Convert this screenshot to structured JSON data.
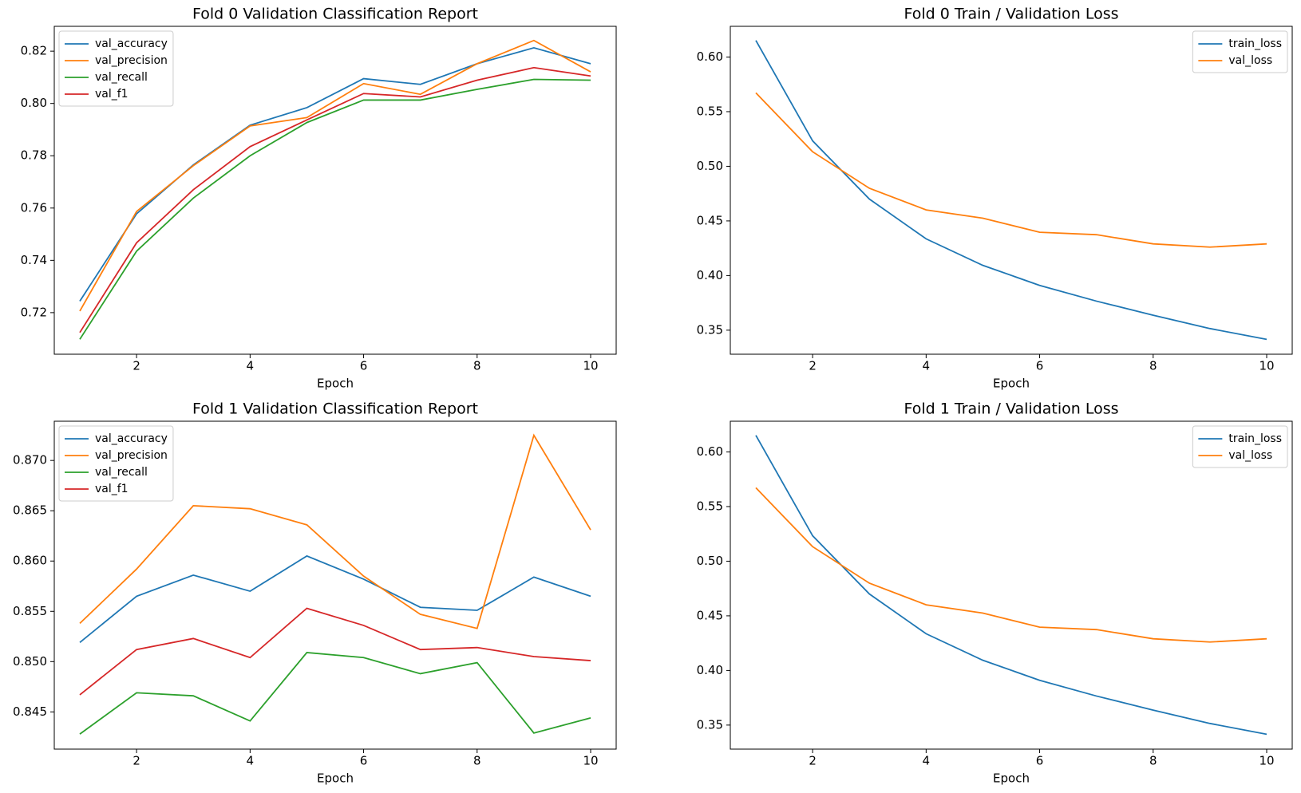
{
  "chart_data": [
    {
      "type": "line",
      "title": "Fold 0 Validation Classification Report",
      "xlabel": "Epoch",
      "x": [
        1,
        2,
        3,
        4,
        5,
        6,
        7,
        8,
        9,
        10
      ],
      "xlim": [
        0.55,
        10.45
      ],
      "xticks": [
        2,
        4,
        6,
        8,
        10
      ],
      "ylim": [
        0.7041,
        0.8295
      ],
      "yticks": [
        0.72,
        0.74,
        0.76,
        0.78,
        {
          "value": 0.8,
          "label": "0.80"
        },
        0.82
      ],
      "legend": "upper left",
      "series": [
        {
          "name": "val_accuracy",
          "color": "#1f77b4",
          "values": [
            0.7244,
            0.7578,
            0.7765,
            0.7917,
            0.7984,
            0.8095,
            0.8073,
            0.8152,
            0.8213,
            0.8152
          ]
        },
        {
          "name": "val_precision",
          "color": "#ff7f0e",
          "values": [
            0.7206,
            0.7587,
            0.7762,
            0.7914,
            0.7946,
            0.8076,
            0.8035,
            0.8152,
            0.8241,
            0.8121
          ]
        },
        {
          "name": "val_recall",
          "color": "#2ca02c",
          "values": [
            0.7098,
            0.7435,
            0.7638,
            0.78,
            0.7927,
            0.8013,
            0.8013,
            0.8054,
            0.8092,
            0.8089
          ]
        },
        {
          "name": "val_f1",
          "color": "#d62728",
          "values": [
            0.7124,
            0.7467,
            0.767,
            0.7835,
            0.7937,
            0.8038,
            0.8025,
            0.8089,
            0.8137,
            0.8105
          ]
        }
      ]
    },
    {
      "type": "line",
      "title": "Fold 0 Train / Validation Loss",
      "xlabel": "Epoch",
      "x": [
        1,
        2,
        3,
        4,
        5,
        6,
        7,
        8,
        9,
        10
      ],
      "xlim": [
        0.55,
        10.45
      ],
      "xticks": [
        2,
        4,
        6,
        8,
        10
      ],
      "ylim": [
        0.328,
        0.6281
      ],
      "yticks": [
        0.35,
        {
          "value": 0.4,
          "label": "0.40"
        },
        0.45,
        {
          "value": 0.5,
          "label": "0.50"
        },
        0.55,
        {
          "value": 0.6,
          "label": "0.60"
        }
      ],
      "legend": "upper right",
      "series": [
        {
          "name": "train_loss",
          "color": "#1f77b4",
          "values": [
            0.6152,
            0.5233,
            0.47,
            0.4336,
            0.4093,
            0.391,
            0.3766,
            0.3637,
            0.3515,
            0.3416
          ]
        },
        {
          "name": "val_loss",
          "color": "#ff7f0e",
          "values": [
            0.5672,
            0.5133,
            0.4799,
            0.4601,
            0.4525,
            0.4396,
            0.4374,
            0.429,
            0.426,
            0.429
          ]
        }
      ]
    },
    {
      "type": "line",
      "title": "Fold 1 Validation Classification Report",
      "xlabel": "Epoch",
      "x": [
        1,
        2,
        3,
        4,
        5,
        6,
        7,
        8,
        9,
        10
      ],
      "xlim": [
        0.55,
        10.45
      ],
      "xticks": [
        2,
        4,
        6,
        8,
        10
      ],
      "ylim": [
        0.8413,
        0.8739
      ],
      "yticks": [
        0.845,
        {
          "value": 0.85,
          "label": "0.850"
        },
        0.855,
        {
          "value": 0.86,
          "label": "0.860"
        },
        0.865,
        {
          "value": 0.87,
          "label": "0.870"
        }
      ],
      "legend": "upper left",
      "series": [
        {
          "name": "val_accuracy",
          "color": "#1f77b4",
          "values": [
            0.8519,
            0.8565,
            0.8586,
            0.857,
            0.8605,
            0.8582,
            0.8554,
            0.8551,
            0.8584,
            0.8565
          ]
        },
        {
          "name": "val_precision",
          "color": "#ff7f0e",
          "values": [
            0.8538,
            0.8592,
            0.8655,
            0.8652,
            0.8636,
            0.8585,
            0.8547,
            0.8533,
            0.8725,
            0.8631
          ]
        },
        {
          "name": "val_recall",
          "color": "#2ca02c",
          "values": [
            0.8428,
            0.8469,
            0.8466,
            0.8441,
            0.8509,
            0.8504,
            0.8488,
            0.8499,
            0.8429,
            0.8444
          ]
        },
        {
          "name": "val_f1",
          "color": "#d62728",
          "values": [
            0.8467,
            0.8512,
            0.8523,
            0.8504,
            0.8553,
            0.8536,
            0.8512,
            0.8514,
            0.8505,
            0.8501
          ]
        }
      ]
    },
    {
      "type": "line",
      "title": "Fold 1 Train / Validation Loss",
      "xlabel": "Epoch",
      "x": [
        1,
        2,
        3,
        4,
        5,
        6,
        7,
        8,
        9,
        10
      ],
      "xlim": [
        0.55,
        10.45
      ],
      "xticks": [
        2,
        4,
        6,
        8,
        10
      ],
      "ylim": [
        0.328,
        0.6281
      ],
      "yticks": [
        0.35,
        {
          "value": 0.4,
          "label": "0.40"
        },
        0.45,
        {
          "value": 0.5,
          "label": "0.50"
        },
        0.55,
        {
          "value": 0.6,
          "label": "0.60"
        }
      ],
      "legend": "upper right",
      "series": [
        {
          "name": "train_loss",
          "color": "#1f77b4",
          "values": [
            0.6152,
            0.5233,
            0.47,
            0.4336,
            0.4093,
            0.391,
            0.3766,
            0.3637,
            0.3515,
            0.3416
          ]
        },
        {
          "name": "val_loss",
          "color": "#ff7f0e",
          "values": [
            0.5672,
            0.5133,
            0.4799,
            0.4601,
            0.4525,
            0.4396,
            0.4374,
            0.429,
            0.426,
            0.429
          ]
        }
      ]
    }
  ]
}
